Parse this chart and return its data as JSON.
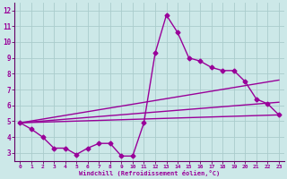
{
  "xlabel": "Windchill (Refroidissement éolien,°C)",
  "background_color": "#cce8e8",
  "grid_color": "#aacccc",
  "line_color": "#990099",
  "spine_color": "#660066",
  "xlim": [
    -0.5,
    23.5
  ],
  "ylim": [
    2.5,
    12.5
  ],
  "xticks": [
    0,
    1,
    2,
    3,
    4,
    5,
    6,
    7,
    8,
    9,
    10,
    11,
    12,
    13,
    14,
    15,
    16,
    17,
    18,
    19,
    20,
    21,
    22,
    23
  ],
  "yticks": [
    3,
    4,
    5,
    6,
    7,
    8,
    9,
    10,
    11,
    12
  ],
  "series": [
    {
      "x": [
        0,
        1,
        2,
        3,
        4,
        5,
        6,
        7,
        8,
        9,
        10,
        11,
        12,
        13,
        14,
        15,
        16,
        17,
        18,
        19,
        20,
        21,
        22,
        23
      ],
      "y": [
        4.9,
        4.5,
        4.0,
        3.3,
        3.3,
        2.9,
        3.3,
        3.6,
        3.6,
        2.8,
        2.8,
        4.9,
        9.3,
        11.7,
        10.6,
        9.0,
        8.8,
        8.4,
        8.2,
        8.2,
        7.5,
        6.4,
        6.1,
        5.4
      ],
      "marker": "D",
      "markersize": 2.5,
      "linewidth": 1.0
    },
    {
      "x": [
        0,
        23
      ],
      "y": [
        4.9,
        5.4
      ],
      "marker": null,
      "linewidth": 1.0
    },
    {
      "x": [
        0,
        23
      ],
      "y": [
        4.9,
        6.2
      ],
      "marker": null,
      "linewidth": 1.0
    },
    {
      "x": [
        0,
        23
      ],
      "y": [
        4.9,
        7.6
      ],
      "marker": null,
      "linewidth": 1.0
    }
  ]
}
